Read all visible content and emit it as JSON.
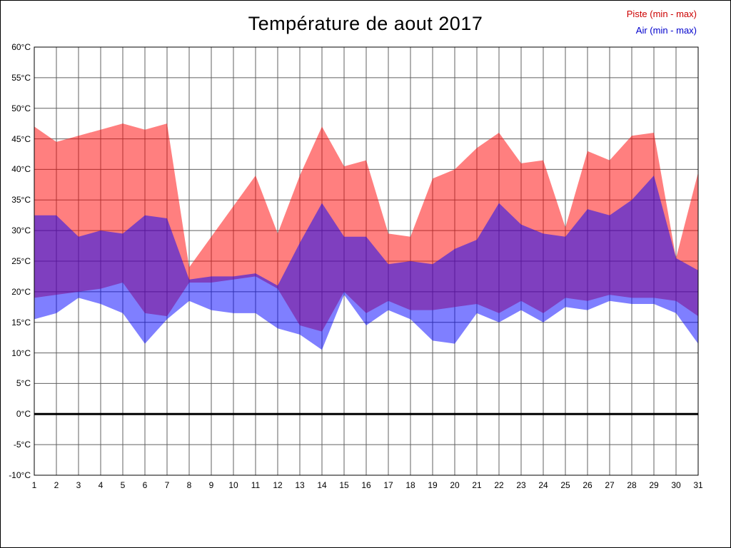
{
  "window": {
    "background": "#ffffff",
    "frame_border_color": "#000000"
  },
  "chart_data": {
    "type": "area",
    "title": "Température de aout 2017",
    "xlabel": "",
    "ylabel": "",
    "grid": true,
    "grid_color": "#606060",
    "legend_position": "top-right",
    "ylim": [
      -10,
      60
    ],
    "ytick_step": 5,
    "ytick_labels": [
      "60°C",
      "55°C",
      "50°C",
      "45°C",
      "40°C",
      "35°C",
      "30°C",
      "25°C",
      "20°C",
      "15°C",
      "10°C",
      "5°C",
      "0°C",
      "-5°C",
      "-10°C"
    ],
    "zero_line": {
      "temp": 0,
      "color": "#000000"
    },
    "x": [
      1,
      2,
      3,
      4,
      5,
      6,
      7,
      8,
      9,
      10,
      11,
      12,
      13,
      14,
      15,
      16,
      17,
      18,
      19,
      20,
      21,
      22,
      23,
      24,
      25,
      26,
      27,
      28,
      29,
      30,
      31
    ],
    "series": [
      {
        "name": "Piste (min - max)",
        "band_color": "#ff0000",
        "band_opacity": 0.5,
        "legend_text_color": "#cc0000",
        "max": [
          47,
          44.5,
          45.5,
          46.5,
          47.5,
          46.5,
          47.5,
          24,
          29,
          34,
          39,
          29.5,
          39,
          47,
          40.5,
          41.5,
          29.5,
          29,
          38.5,
          40,
          43.5,
          46,
          41,
          41.5,
          30.5,
          43,
          41.5,
          45.5,
          46,
          25.5,
          39.5
        ],
        "min": [
          19,
          19.5,
          20,
          20.5,
          21.5,
          16.5,
          16,
          21.5,
          21.5,
          22,
          22.5,
          20.5,
          14.5,
          13.5,
          20,
          16.5,
          18.5,
          17,
          17,
          17.5,
          18,
          16.5,
          18.5,
          16.5,
          19,
          18.5,
          19.5,
          19,
          19,
          18.5,
          16
        ]
      },
      {
        "name": "Air (min - max)",
        "band_color": "#0000ff",
        "band_opacity": 0.5,
        "legend_text_color": "#0000cc",
        "max": [
          32.5,
          32.5,
          29,
          30,
          29.5,
          32.5,
          32,
          22,
          22.5,
          22.5,
          23,
          21,
          28,
          34.5,
          29,
          29,
          24.5,
          25,
          24.5,
          27,
          28.5,
          34.5,
          31,
          29.5,
          29,
          33.5,
          32.5,
          35,
          39,
          25.5,
          23.5
        ],
        "min": [
          15.5,
          16.5,
          19,
          18,
          16.5,
          11.5,
          15.5,
          18.5,
          17,
          16.5,
          16.5,
          14,
          13,
          10.5,
          19.5,
          14.5,
          17,
          15.5,
          12,
          11.5,
          16.5,
          15,
          17,
          15,
          17.5,
          17,
          18.5,
          18,
          18,
          16.5,
          11.5
        ]
      }
    ]
  }
}
